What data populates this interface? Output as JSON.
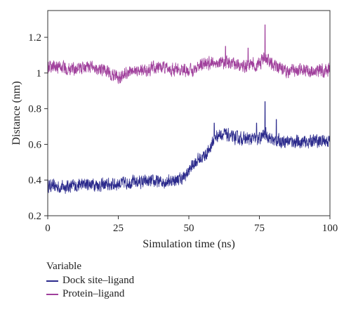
{
  "chart_data": {
    "type": "line",
    "xlabel": "Simulation time (ns)",
    "ylabel": "Distance (nm)",
    "xlim": [
      0,
      100
    ],
    "ylim": [
      0.2,
      1.35
    ],
    "x_ticks": [
      "0",
      "25",
      "50",
      "75",
      "100"
    ],
    "y_ticks": [
      "0.2",
      "0.4",
      "0.6",
      "0.8",
      "1",
      "1.2"
    ],
    "legend": {
      "title": "Variable",
      "placement": "bottom-left"
    },
    "series": [
      {
        "name": "Dock site–ligand",
        "color": "#2b2a8c",
        "x": [
          0,
          5,
          10,
          15,
          20,
          25,
          30,
          35,
          40,
          45,
          48,
          50,
          52,
          55,
          57,
          58,
          60,
          62,
          65,
          70,
          75,
          77,
          80,
          85,
          90,
          95,
          100
        ],
        "y": [
          0.37,
          0.36,
          0.37,
          0.38,
          0.37,
          0.38,
          0.39,
          0.39,
          0.39,
          0.4,
          0.41,
          0.45,
          0.5,
          0.53,
          0.56,
          0.6,
          0.65,
          0.66,
          0.64,
          0.63,
          0.63,
          0.66,
          0.62,
          0.62,
          0.61,
          0.62,
          0.62
        ],
        "noise": 0.03,
        "spikes": [
          [
            59,
            0.72
          ],
          [
            74,
            0.72
          ],
          [
            77,
            0.84
          ],
          [
            81,
            0.74
          ]
        ]
      },
      {
        "name": "Protein–ligand",
        "color": "#a0409c",
        "x": [
          0,
          5,
          10,
          15,
          20,
          22,
          25,
          30,
          35,
          40,
          45,
          50,
          55,
          60,
          65,
          70,
          75,
          77,
          80,
          85,
          90,
          95,
          100
        ],
        "y": [
          1.04,
          1.03,
          1.02,
          1.04,
          1.02,
          0.99,
          0.98,
          1.01,
          1.02,
          1.03,
          1.02,
          1.01,
          1.05,
          1.06,
          1.05,
          1.04,
          1.05,
          1.09,
          1.04,
          1.01,
          1.02,
          1.01,
          1.02
        ],
        "noise": 0.03,
        "spikes": [
          [
            63,
            1.15
          ],
          [
            77,
            1.27
          ],
          [
            71,
            1.14
          ]
        ]
      }
    ]
  }
}
